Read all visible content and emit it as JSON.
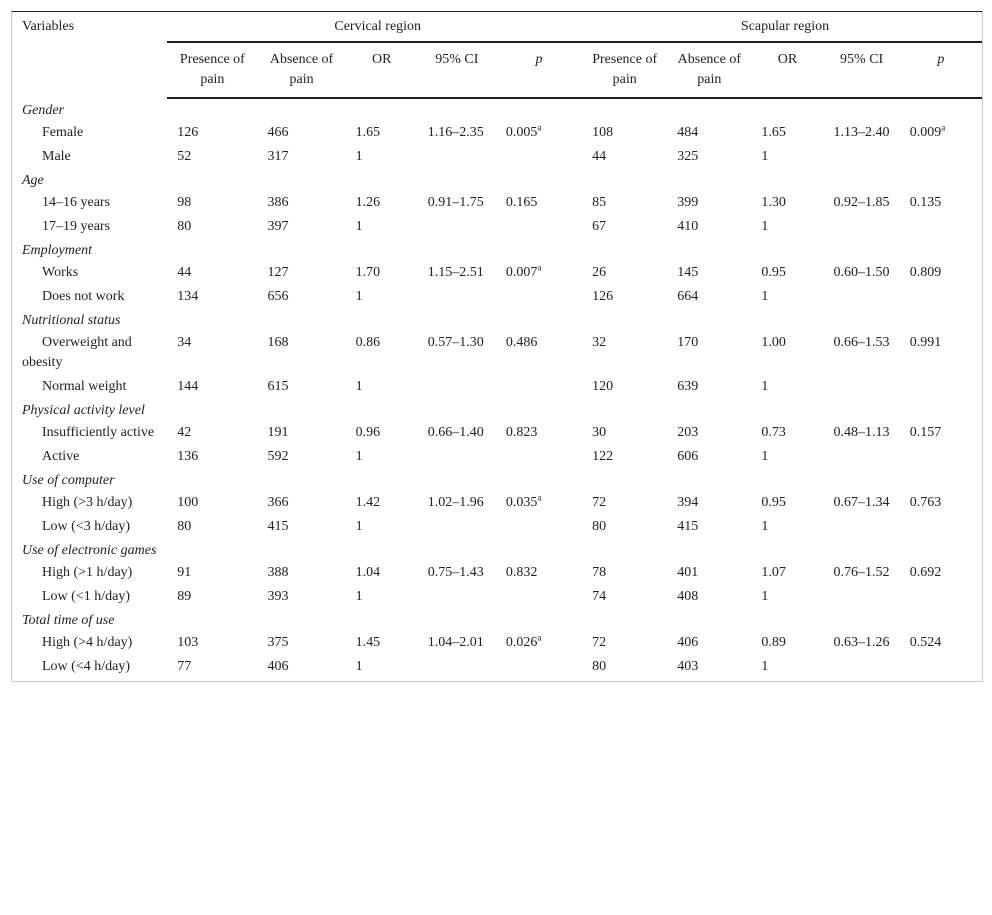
{
  "header": {
    "variables": "Variables",
    "cervical": "Cervical region",
    "scapular": "Scapular region",
    "columns": [
      "Presence of pain",
      "Absence of pain",
      "OR",
      "95% CI",
      "p",
      "Presence of pain",
      "Absence of pain",
      "OR",
      "95% CI",
      "p"
    ]
  },
  "groups": [
    {
      "name": "Gender",
      "rows": [
        {
          "label": "Female",
          "cells": [
            "126",
            "466",
            "1.65",
            "1.16–2.35",
            {
              "text": "0.005",
              "sup": "a"
            },
            "108",
            "484",
            "1.65",
            "1.13–2.40",
            {
              "text": "0.009",
              "sup": "a"
            }
          ]
        },
        {
          "label": "Male",
          "cells": [
            "52",
            "317",
            "1",
            null,
            null,
            "44",
            "325",
            "1",
            null,
            null
          ]
        }
      ]
    },
    {
      "name": "Age",
      "rows": [
        {
          "label": "14–16 years",
          "cells": [
            "98",
            "386",
            "1.26",
            "0.91–1.75",
            "0.165",
            "85",
            "399",
            "1.30",
            "0.92–1.85",
            "0.135"
          ]
        },
        {
          "label": "17–19 years",
          "cells": [
            "80",
            "397",
            "1",
            null,
            null,
            "67",
            "410",
            "1",
            null,
            null
          ]
        }
      ]
    },
    {
      "name": "Employment",
      "rows": [
        {
          "label": "Works",
          "cells": [
            "44",
            "127",
            "1.70",
            "1.15–2.51",
            {
              "text": "0.007",
              "sup": "a"
            },
            "26",
            "145",
            "0.95",
            "0.60–1.50",
            "0.809"
          ]
        },
        {
          "label": "Does not work",
          "cells": [
            "134",
            "656",
            "1",
            null,
            null,
            "126",
            "664",
            "1",
            null,
            null
          ]
        }
      ]
    },
    {
      "name": "Nutritional status",
      "rows": [
        {
          "label": "Overweight and obesity",
          "cells": [
            "34",
            "168",
            "0.86",
            "0.57–1.30",
            "0.486",
            "32",
            "170",
            "1.00",
            "0.66–1.53",
            "0.991"
          ]
        },
        {
          "label": "Normal weight",
          "cells": [
            "144",
            "615",
            "1",
            null,
            null,
            "120",
            "639",
            "1",
            null,
            null
          ]
        }
      ]
    },
    {
      "name": "Physical activity level",
      "rows": [
        {
          "label": "Insufficiently active",
          "cells": [
            "42",
            "191",
            "0.96",
            "0.66–1.40",
            "0.823",
            "30",
            "203",
            "0.73",
            "0.48–1.13",
            "0.157"
          ]
        },
        {
          "label": "Active",
          "cells": [
            "136",
            "592",
            "1",
            null,
            null,
            "122",
            "606",
            "1",
            null,
            null
          ]
        }
      ]
    },
    {
      "name": "Use of computer",
      "rows": [
        {
          "label": "High (>3 h/day)",
          "cells": [
            "100",
            "366",
            "1.42",
            "1.02–1.96",
            {
              "text": "0.035",
              "sup": "a"
            },
            "72",
            "394",
            "0.95",
            "0.67–1.34",
            "0.763"
          ]
        },
        {
          "label": "Low (<3 h/day)",
          "cells": [
            "80",
            "415",
            "1",
            null,
            null,
            "80",
            "415",
            "1",
            null,
            null
          ]
        }
      ]
    },
    {
      "name": "Use of electronic games",
      "rows": [
        {
          "label": "High (>1 h/day)",
          "cells": [
            "91",
            "388",
            "1.04",
            "0.75–1.43",
            "0.832",
            "78",
            "401",
            "1.07",
            "0.76–1.52",
            "0.692"
          ]
        },
        {
          "label": "Low (<1 h/day)",
          "cells": [
            "89",
            "393",
            "1",
            null,
            null,
            "74",
            "408",
            "1",
            null,
            null
          ]
        }
      ]
    },
    {
      "name": "Total time of use",
      "rows": [
        {
          "label": "High (>4 h/day)",
          "cells": [
            "103",
            "375",
            "1.45",
            "1.04–2.01",
            {
              "text": "0.026",
              "sup": "a"
            },
            "72",
            "406",
            "0.89",
            "0.63–1.26",
            "0.524"
          ]
        },
        {
          "label": "Low (<4 h/day)",
          "cells": [
            "77",
            "406",
            "1",
            null,
            null,
            "80",
            "403",
            "1",
            null,
            null
          ]
        }
      ]
    }
  ]
}
